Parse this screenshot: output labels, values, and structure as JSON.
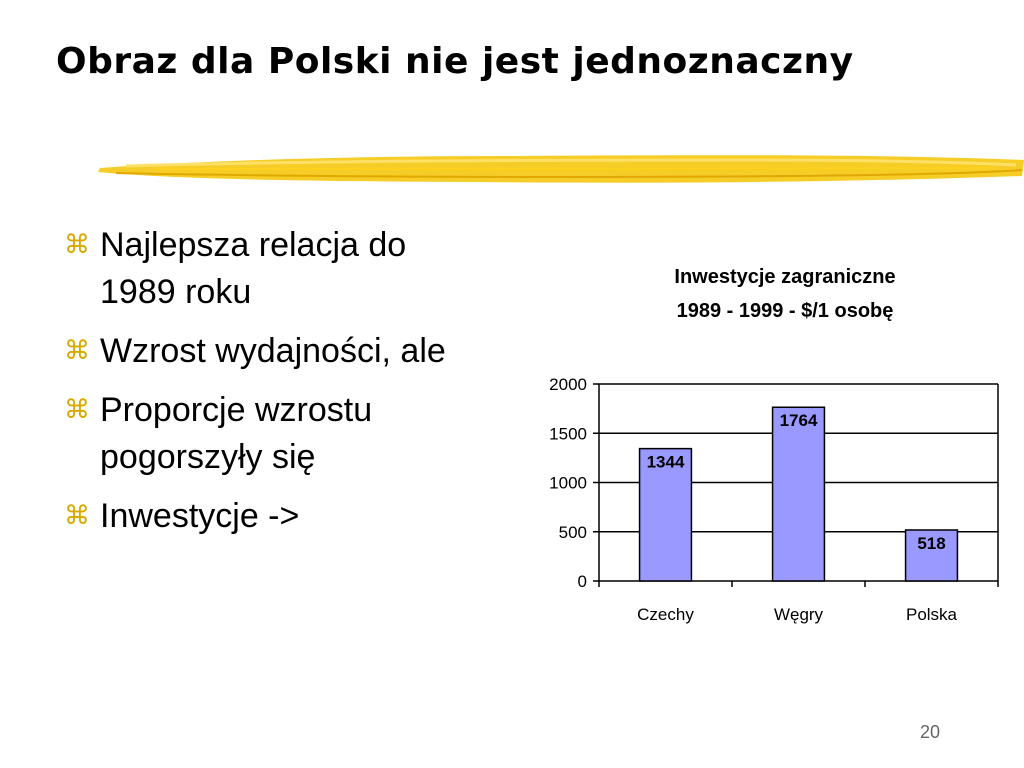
{
  "slide": {
    "title": "Obraz dla Polski nie jest jednoznaczny",
    "page_number": "20"
  },
  "bullets": [
    {
      "icon": "bullet-icon",
      "text": "Najlepsza relacja do 1989 roku"
    },
    {
      "icon": "bullet-icon",
      "text": "Wzrost wydajności, ale"
    },
    {
      "icon": "bullet-icon",
      "text": "Proporcje wzrostu pogorszyły się"
    },
    {
      "icon": "bullet-icon",
      "text": "Inwestycje ->"
    }
  ],
  "colors": {
    "bar_fill": "#9999ff",
    "accent_brush": "#f3c400",
    "bullet": "#d8a800"
  },
  "chart_data": {
    "type": "bar",
    "title_lines": [
      "Inwestycje zagraniczne",
      "1989 - 1999 - $/1 osobę"
    ],
    "categories": [
      "Czechy",
      "Węgry",
      "Polska"
    ],
    "series": [
      {
        "values": [
          1344,
          1764,
          518
        ]
      }
    ],
    "data_labels": [
      "1344",
      "1764",
      "518"
    ],
    "y_ticks": [
      "0",
      "500",
      "1000",
      "1500",
      "2000"
    ],
    "ylim": [
      0,
      2000
    ],
    "grid": true,
    "legend": "none"
  }
}
